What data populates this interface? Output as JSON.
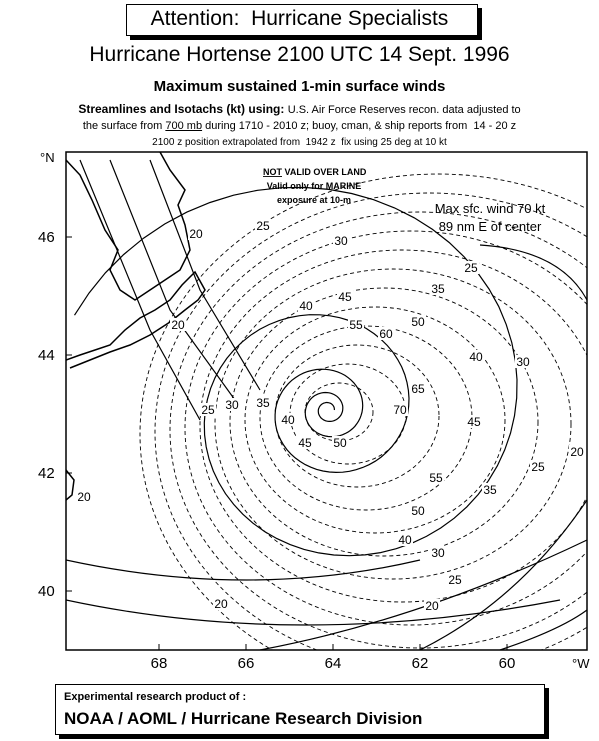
{
  "header": {
    "title": "Attention:  Hurricane Specialists",
    "subtitle": "Hurricane Hortense 2100 UTC 14 Sept. 1996",
    "heading": "Maximum sustained 1-min surface winds",
    "line1": [
      "Streamlines and Isotachs (kt) using: ",
      "U.S. Air Force Reserves recon. data adjusted to"
    ],
    "line2": [
      "the surface from ",
      "700 mb",
      " during 1710 - 2010 z; buoy, cman, & ship reports from  14 - 20 z"
    ],
    "line3": "2100 z position extrapolated from  1942 z  fix using 25 deg at 10 kt"
  },
  "map": {
    "lon_ticks": [
      68,
      66,
      64,
      62,
      60
    ],
    "lon_unit": "°W",
    "lat_ticks": [
      40,
      42,
      44,
      46
    ],
    "lat_unit": "°N",
    "land_note": [
      "NOT",
      " VALID OVER LAND",
      "Valid only for MARINE",
      "exposure at 10-m"
    ],
    "max_wind": [
      "Max sfc. wind 70 kt",
      "89 nm E of center"
    ],
    "isotach_labels": [
      25,
      30,
      25,
      35,
      40,
      45,
      50,
      55,
      60,
      20,
      20,
      40,
      30,
      65,
      70,
      35,
      30,
      25,
      40,
      45,
      50,
      45,
      55,
      50,
      40,
      35,
      30,
      25,
      20,
      25,
      20,
      20,
      20
    ]
  },
  "footer": {
    "line1": "Experimental research product of :",
    "line2": "NOAA / AOML / Hurricane Research Division"
  }
}
